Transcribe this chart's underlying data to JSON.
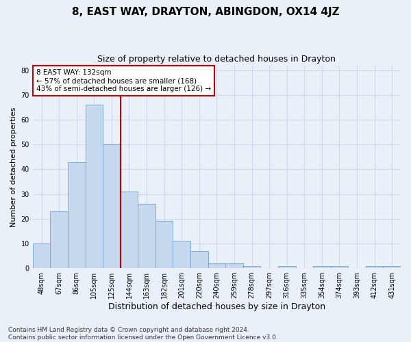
{
  "title": "8, EAST WAY, DRAYTON, ABINGDON, OX14 4JZ",
  "subtitle": "Size of property relative to detached houses in Drayton",
  "xlabel": "Distribution of detached houses by size in Drayton",
  "ylabel": "Number of detached properties",
  "bar_labels": [
    "48sqm",
    "67sqm",
    "86sqm",
    "105sqm",
    "125sqm",
    "144sqm",
    "163sqm",
    "182sqm",
    "201sqm",
    "220sqm",
    "240sqm",
    "259sqm",
    "278sqm",
    "297sqm",
    "316sqm",
    "335sqm",
    "354sqm",
    "374sqm",
    "393sqm",
    "412sqm",
    "431sqm"
  ],
  "bar_values": [
    10,
    23,
    43,
    66,
    50,
    31,
    26,
    19,
    11,
    7,
    2,
    2,
    1,
    0,
    1,
    0,
    1,
    1,
    0,
    1,
    1
  ],
  "bar_color": "#c5d8ed",
  "bar_edgecolor": "#7aadd4",
  "vline_x": 4.5,
  "vline_color": "#cc0000",
  "annotation_line1": "8 EAST WAY: 132sqm",
  "annotation_line2": "← 57% of detached houses are smaller (168)",
  "annotation_line3": "43% of semi-detached houses are larger (126) →",
  "annotation_box_edgecolor": "#cc0000",
  "annotation_box_facecolor": "#ffffff",
  "ylim": [
    0,
    82
  ],
  "yticks": [
    0,
    10,
    20,
    30,
    40,
    50,
    60,
    70,
    80
  ],
  "grid_color": "#d0d8e8",
  "background_color": "#eaf0f8",
  "plot_background": "#eaf0f8",
  "footer_line1": "Contains HM Land Registry data © Crown copyright and database right 2024.",
  "footer_line2": "Contains public sector information licensed under the Open Government Licence v3.0.",
  "title_fontsize": 11,
  "subtitle_fontsize": 9,
  "xlabel_fontsize": 9,
  "ylabel_fontsize": 8,
  "tick_fontsize": 7,
  "annotation_fontsize": 7.5,
  "footer_fontsize": 6.5
}
